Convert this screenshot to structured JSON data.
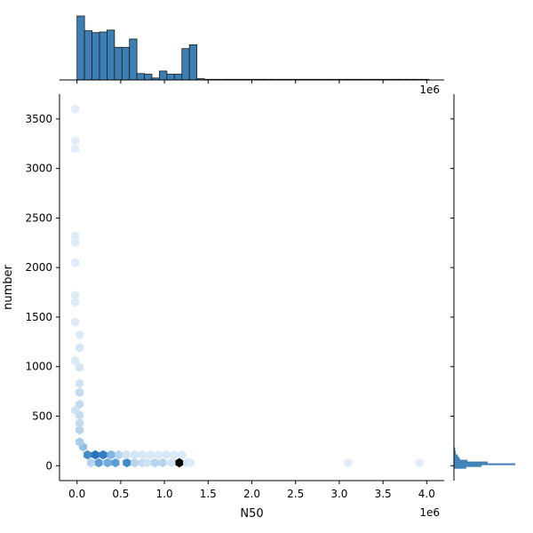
{
  "chart_data": {
    "type": "hexbin-joint",
    "xlabel": "N50",
    "ylabel": "number",
    "x_offset_label": "1e6",
    "top_offset_label": "1e6",
    "xlim": [
      -0.2,
      4.2
    ],
    "ylim": [
      -150,
      3750
    ],
    "x_ticks": [
      0.0,
      0.5,
      1.0,
      1.5,
      2.0,
      2.5,
      3.0,
      3.5,
      4.0
    ],
    "x_tick_labels": [
      "0.0",
      "0.5",
      "1.0",
      "1.5",
      "2.0",
      "2.5",
      "3.0",
      "3.5",
      "4.0"
    ],
    "y_ticks": [
      0,
      500,
      1000,
      1500,
      2000,
      2500,
      3000,
      3500
    ],
    "y_tick_labels": [
      "0",
      "500",
      "1000",
      "1500",
      "2000",
      "2500",
      "3000",
      "3500"
    ],
    "colors": {
      "hex_max": "#000000",
      "hex_dark": "#1f6fb4",
      "hex_mid": "#4a93cf",
      "hex_light": "#a9cdea",
      "hex_faint": "#e8f1fa",
      "marginal_fill": "#3b7fb5",
      "marginal_edge": "#1c1c1c"
    },
    "hexbins": [
      {
        "x": 1.17,
        "y": 30,
        "level": 1.0
      },
      {
        "x": 0.21,
        "y": 110,
        "level": 0.8
      },
      {
        "x": 0.3,
        "y": 110,
        "level": 0.7
      },
      {
        "x": 0.12,
        "y": 110,
        "level": 0.55
      },
      {
        "x": 0.57,
        "y": 30,
        "level": 0.6
      },
      {
        "x": 0.25,
        "y": 30,
        "level": 0.45
      },
      {
        "x": 0.35,
        "y": 30,
        "level": 0.4
      },
      {
        "x": 0.44,
        "y": 30,
        "level": 0.45
      },
      {
        "x": 0.39,
        "y": 110,
        "level": 0.35
      },
      {
        "x": 0.48,
        "y": 110,
        "level": 0.2
      },
      {
        "x": 0.16,
        "y": 30,
        "level": 0.2
      },
      {
        "x": 0.07,
        "y": 190,
        "level": 0.3
      },
      {
        "x": 0.03,
        "y": 240,
        "level": 0.25
      },
      {
        "x": 0.66,
        "y": 30,
        "level": 0.2
      },
      {
        "x": 0.75,
        "y": 30,
        "level": 0.15
      },
      {
        "x": 0.89,
        "y": 30,
        "level": 0.2
      },
      {
        "x": 0.98,
        "y": 30,
        "level": 0.2
      },
      {
        "x": 0.8,
        "y": 30,
        "level": 0.1
      },
      {
        "x": 1.08,
        "y": 30,
        "level": 0.1
      },
      {
        "x": 1.26,
        "y": 30,
        "level": 0.08
      },
      {
        "x": 0.56,
        "y": 110,
        "level": 0.1
      },
      {
        "x": 0.66,
        "y": 110,
        "level": 0.08
      },
      {
        "x": 0.75,
        "y": 110,
        "level": 0.06
      },
      {
        "x": 0.84,
        "y": 110,
        "level": 0.06
      },
      {
        "x": 0.93,
        "y": 110,
        "level": 0.06
      },
      {
        "x": 1.02,
        "y": 110,
        "level": 0.06
      },
      {
        "x": 1.11,
        "y": 110,
        "level": 0.05
      },
      {
        "x": 1.2,
        "y": 110,
        "level": 0.05
      },
      {
        "x": 1.3,
        "y": 30,
        "level": 0.05
      },
      {
        "x": 0.03,
        "y": 360,
        "level": 0.2
      },
      {
        "x": 0.03,
        "y": 430,
        "level": 0.15
      },
      {
        "x": 0.03,
        "y": 510,
        "level": 0.15
      },
      {
        "x": 0.03,
        "y": 620,
        "level": 0.15
      },
      {
        "x": 0.03,
        "y": 740,
        "level": 0.15
      },
      {
        "x": 0.03,
        "y": 830,
        "level": 0.1
      },
      {
        "x": 0.03,
        "y": 990,
        "level": 0.08
      },
      {
        "x": 0.03,
        "y": 1190,
        "level": 0.08
      },
      {
        "x": 0.03,
        "y": 1320,
        "level": 0.05
      },
      {
        "x": -0.02,
        "y": 560,
        "level": 0.1
      },
      {
        "x": -0.02,
        "y": 1060,
        "level": 0.06
      },
      {
        "x": -0.02,
        "y": 1450,
        "level": 0.04
      },
      {
        "x": -0.02,
        "y": 1650,
        "level": 0.04
      },
      {
        "x": -0.02,
        "y": 1720,
        "level": 0.04
      },
      {
        "x": -0.02,
        "y": 2050,
        "level": 0.04
      },
      {
        "x": -0.02,
        "y": 2250,
        "level": 0.04
      },
      {
        "x": -0.02,
        "y": 2320,
        "level": 0.04
      },
      {
        "x": -0.02,
        "y": 3200,
        "level": 0.03
      },
      {
        "x": -0.02,
        "y": 3280,
        "level": 0.03
      },
      {
        "x": -0.02,
        "y": 3600,
        "level": 0.03
      },
      {
        "x": 3.1,
        "y": 30,
        "level": 0.03
      },
      {
        "x": 3.92,
        "y": 30,
        "level": 0.03
      }
    ],
    "top_marginal": {
      "bin_edges_start": 0.0,
      "bin_width": 0.0857,
      "relative_counts": [
        1.0,
        0.77,
        0.74,
        0.75,
        0.78,
        0.51,
        0.51,
        0.64,
        0.1,
        0.09,
        0.03,
        0.14,
        0.09,
        0.09,
        0.49,
        0.55,
        0.02,
        0.01,
        0.01,
        0.01,
        0.01,
        0.01,
        0.01,
        0.01,
        0.01,
        0.01,
        0.01,
        0.01,
        0.01,
        0.01,
        0.01,
        0.01,
        0.01,
        0.01,
        0.01,
        0.01,
        0.01,
        0.01,
        0.01,
        0.01,
        0.01,
        0.01,
        0.01,
        0.01,
        0.01,
        0.01,
        0.01
      ]
    },
    "right_marginal": {
      "bin_edges_start": -30,
      "bin_width": 18,
      "relative_counts": [
        0.2,
        0.45,
        1.0,
        0.55,
        0.22,
        0.1,
        0.08,
        0.06,
        0.03,
        0.03,
        0.02,
        0.02
      ]
    }
  }
}
